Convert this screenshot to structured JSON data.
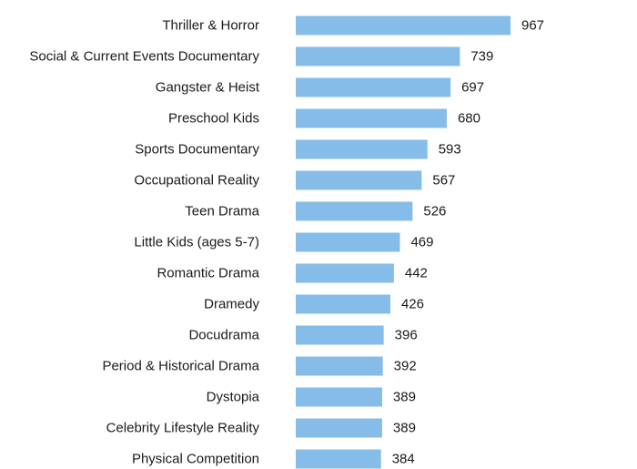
{
  "chart_data": {
    "type": "bar",
    "orientation": "horizontal",
    "title": "",
    "xlabel": "",
    "ylabel": "",
    "categories": [
      "Thriller & Horror",
      "Social & Current Events Documentary",
      "Gangster & Heist",
      "Preschool Kids",
      "Sports Documentary",
      "Occupational Reality",
      "Teen Drama",
      "Little Kids (ages 5-7)",
      "Romantic Drama",
      "Dramedy",
      "Docudrama",
      "Period & Historical Drama",
      "Dystopia",
      "Celebrity Lifestyle Reality",
      "Physical Competition"
    ],
    "values": [
      967,
      739,
      697,
      680,
      593,
      567,
      526,
      469,
      442,
      426,
      396,
      392,
      389,
      389,
      384
    ],
    "value_labels": [
      "967",
      "739",
      "697",
      "680",
      "593",
      "567",
      "526",
      "469",
      "442",
      "426",
      "396",
      "392",
      "389",
      "389",
      "384"
    ],
    "xlim": [
      0,
      967
    ],
    "bar_color": "#85bde8",
    "text_color": "#1a1a1a",
    "grid": false,
    "legend": "none"
  }
}
